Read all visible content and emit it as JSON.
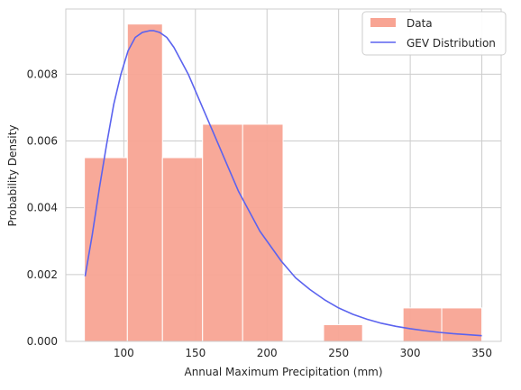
{
  "chart_data": {
    "type": "bar",
    "xlabel": "Annual Maximum Precipitation (mm)",
    "ylabel": "Probability Density",
    "xlim": [
      59.5,
      363.5
    ],
    "ylim": [
      0,
      0.00995
    ],
    "x_ticks": [
      100,
      150,
      200,
      250,
      300,
      350
    ],
    "x_tick_labels": [
      "100",
      "150",
      "200",
      "250",
      "300",
      "350"
    ],
    "y_ticks": [
      0,
      0.002,
      0.004,
      0.006,
      0.008
    ],
    "y_tick_labels": [
      "0.000",
      "0.002",
      "0.004",
      "0.006",
      "0.008"
    ],
    "grid": true,
    "legend_position": "top-right",
    "histogram": {
      "name": "Data",
      "color": "#f8a493",
      "edge_color": "#ffffff",
      "bin_edges": [
        72.5,
        102.5,
        127.0,
        155.0,
        183.0,
        211.2,
        239.5,
        266.7,
        295.0,
        322.0,
        350.0
      ],
      "densities": [
        0.0055,
        0.0095,
        0.0055,
        0.0065,
        0.0065,
        0.0,
        0.0005,
        0.0,
        0.001,
        0.001
      ]
    },
    "curve": {
      "name": "GEV Distribution",
      "color": "#5b63ef",
      "x": [
        73,
        78,
        83,
        88,
        93,
        98,
        103,
        108,
        113,
        118,
        121,
        125,
        130,
        135,
        140,
        145,
        150,
        155,
        160,
        165,
        170,
        175,
        180,
        185,
        190,
        195,
        200,
        210,
        220,
        230,
        240,
        250,
        260,
        270,
        280,
        290,
        300,
        310,
        320,
        330,
        340,
        350
      ],
      "y": [
        0.00195,
        0.0032,
        0.0046,
        0.0059,
        0.0071,
        0.008,
        0.0087,
        0.0091,
        0.00925,
        0.0093,
        0.0093,
        0.00925,
        0.0091,
        0.0088,
        0.0084,
        0.008,
        0.0075,
        0.007,
        0.0065,
        0.006,
        0.0055,
        0.005,
        0.0045,
        0.0041,
        0.0037,
        0.0033,
        0.003,
        0.0024,
        0.0019,
        0.00155,
        0.00125,
        0.001,
        0.00081,
        0.00066,
        0.00054,
        0.00045,
        0.00038,
        0.00032,
        0.00027,
        0.00023,
        0.0002,
        0.00017
      ]
    }
  }
}
